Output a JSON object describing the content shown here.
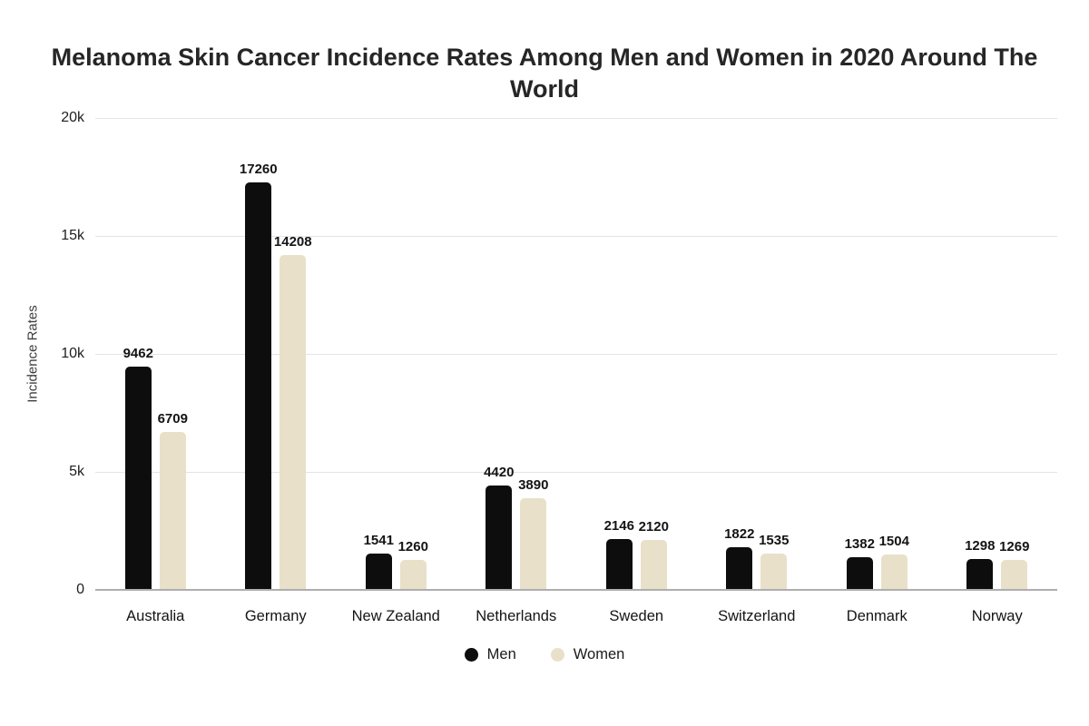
{
  "chart_data": {
    "type": "bar",
    "title": "Melanoma Skin Cancer Incidence Rates Among Men and Women in 2020 Around The World",
    "xlabel": "",
    "ylabel": "Incidence Rates",
    "ylim": [
      0,
      20000
    ],
    "grid": true,
    "legend_position": "bottom",
    "categories": [
      "Australia",
      "Germany",
      "New Zealand",
      "Netherlands",
      "Sweden",
      "Switzerland",
      "Denmark",
      "Norway"
    ],
    "series": [
      {
        "name": "Men",
        "color": "#0d0d0d",
        "values": [
          9462,
          17260,
          1541,
          4420,
          2146,
          1822,
          1382,
          1298
        ]
      },
      {
        "name": "Women",
        "color": "#e9e0c9",
        "values": [
          6709,
          14208,
          1260,
          3890,
          2120,
          1535,
          1504,
          1269
        ]
      }
    ],
    "yticks": [
      {
        "value": 0,
        "label": "0"
      },
      {
        "value": 5000,
        "label": "5k"
      },
      {
        "value": 10000,
        "label": "10k"
      },
      {
        "value": 15000,
        "label": "15k"
      },
      {
        "value": 20000,
        "label": "20k"
      }
    ]
  }
}
